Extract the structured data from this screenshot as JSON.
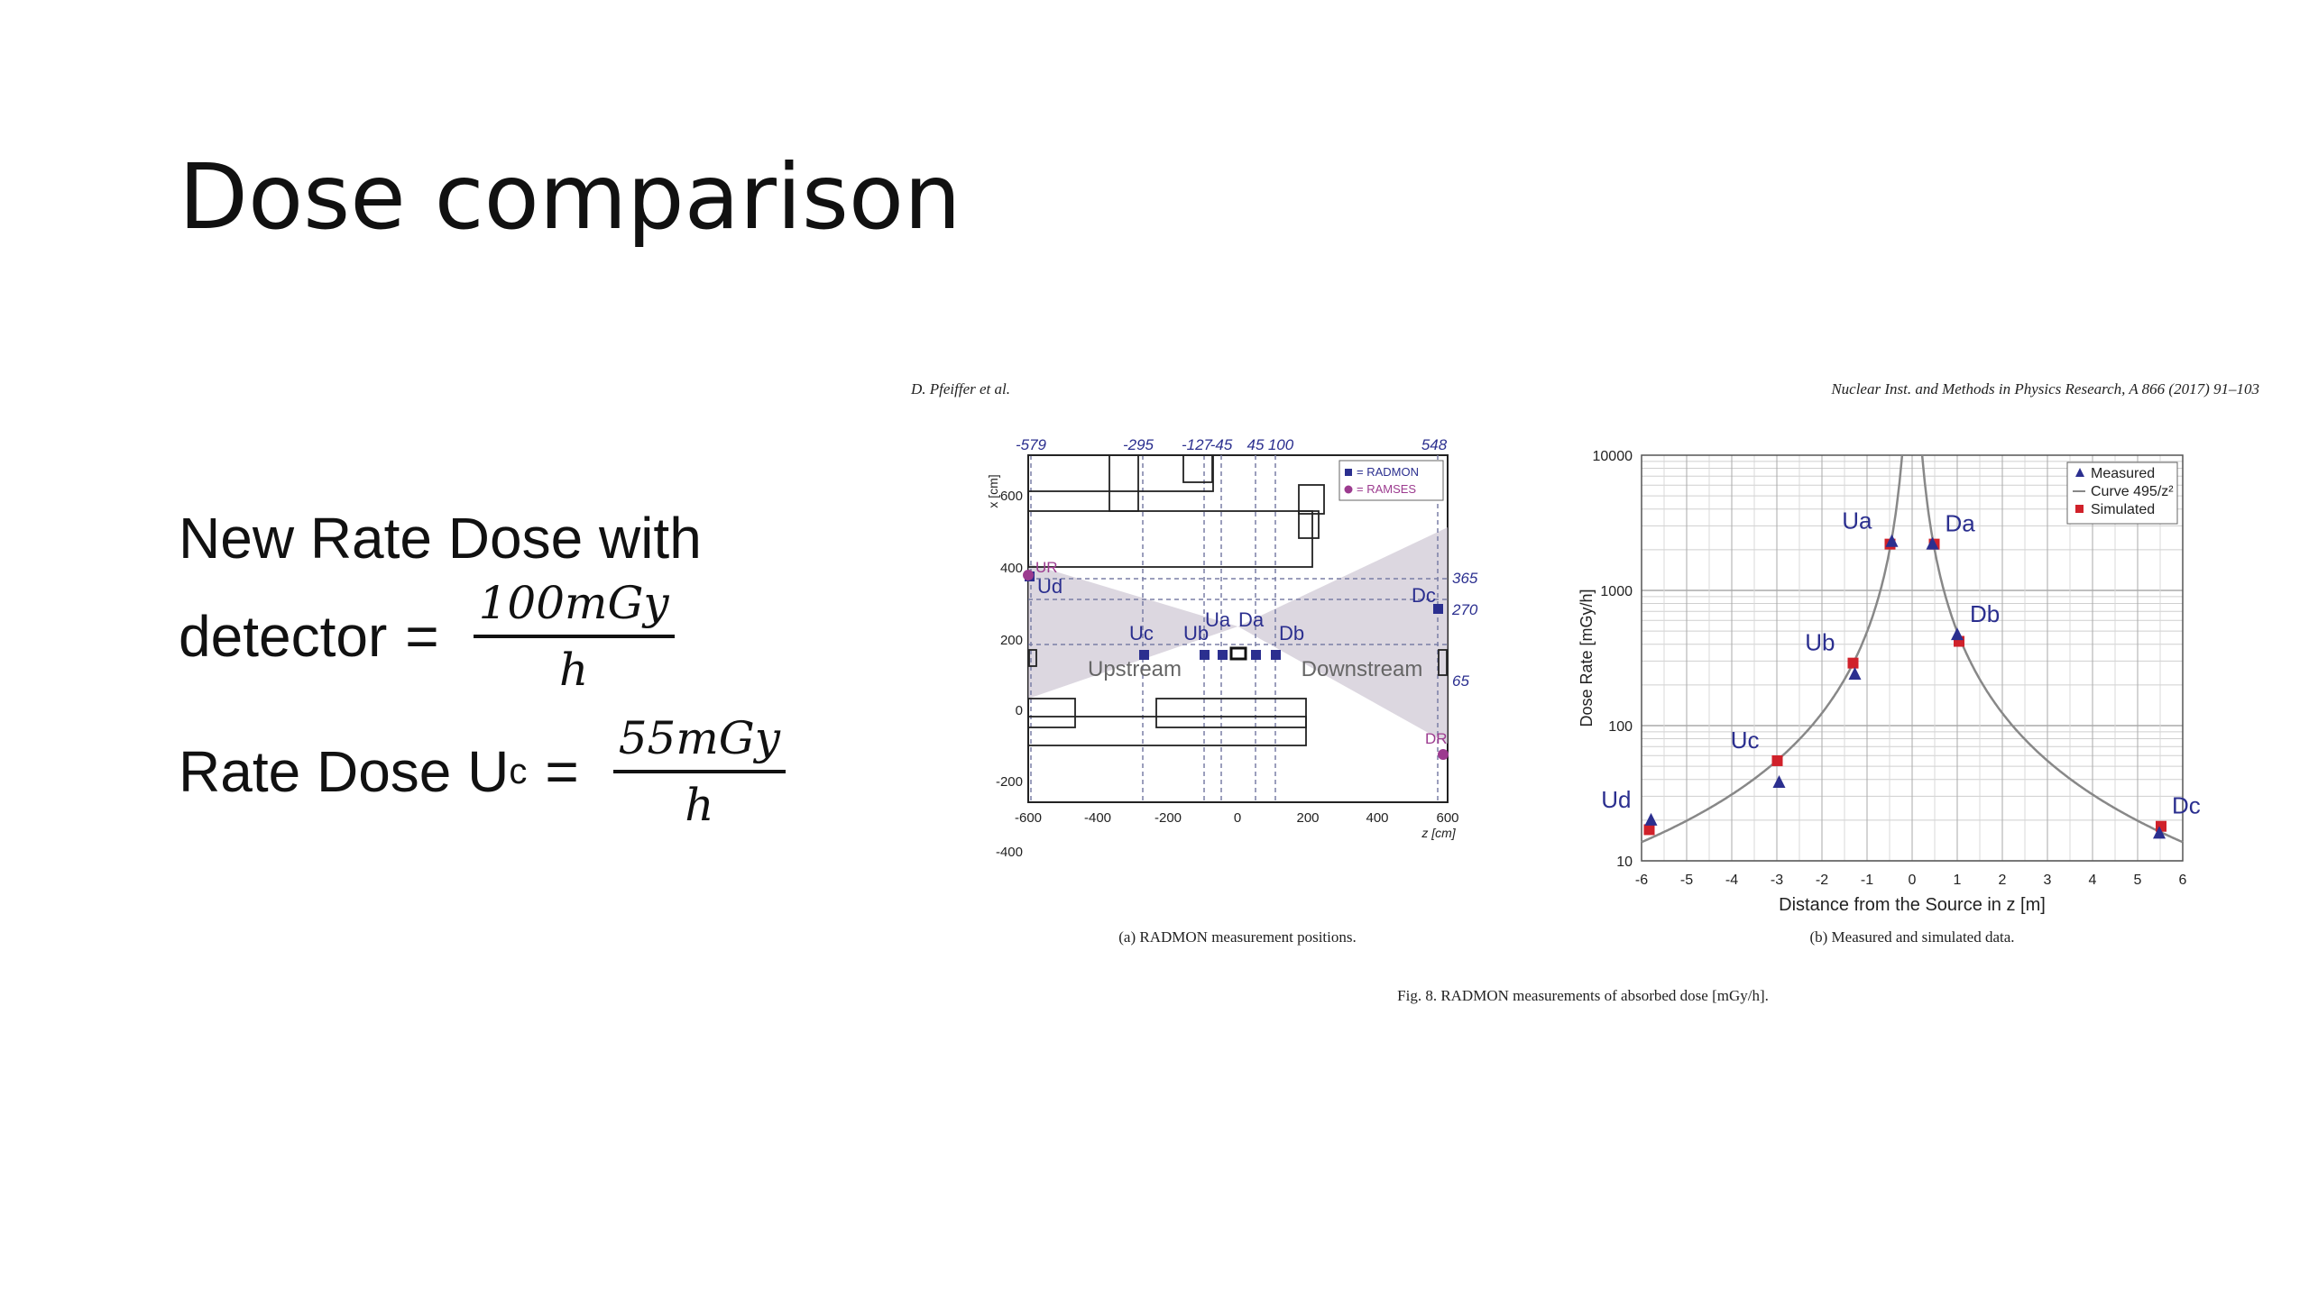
{
  "slide": {
    "title": "Dose comparison",
    "eq1": {
      "line1": "New Rate Dose with",
      "line2": "detector",
      "eq_sign": "=",
      "num": "100mGy",
      "den": "h"
    },
    "eq2": {
      "label": "Rate Dose U",
      "sub": "c",
      "eq_sign": "=",
      "num": "55mGy",
      "den": "h"
    }
  },
  "figure": {
    "header_left": "D. Pfeiffer et al.",
    "header_right": "Nuclear Inst. and Methods in Physics Research, A 866 (2017) 91–103",
    "caption": "Fig. 8.  RADMON measurements of absorbed dose [mGy/h].",
    "panel_a": {
      "caption": "(a) RADMON measurement positions.",
      "top_ticks": [
        "-579",
        "-295",
        "-127",
        "-45",
        "45",
        "100",
        "548"
      ],
      "right_ticks": [
        "365",
        "270",
        "65"
      ],
      "y_label": "x [cm]",
      "y_ticks": [
        "600",
        "400",
        "200",
        "0",
        "-200",
        "-400"
      ],
      "x_ticks": [
        "-600",
        "-400",
        "-200",
        "0",
        "200",
        "400",
        "600"
      ],
      "x_unit": "z [cm]",
      "legend": [
        "= RADMON",
        "= RAMSES"
      ],
      "upstream_label": "Upstream",
      "downstream_label": "Downstream",
      "points": [
        "UR",
        "Ud",
        "Uc",
        "Ub",
        "Ua",
        "Da",
        "Db",
        "Dc",
        "DR"
      ]
    },
    "panel_b": {
      "caption": "(b) Measured and simulated data.",
      "colors": {
        "measured": "#2b2f8f",
        "simulated": "#d0212a",
        "curve": "#888888"
      }
    }
  },
  "chart_data": {
    "type": "scatter",
    "title": "",
    "xlabel": "Distance from the Source in z [m]",
    "ylabel": "Dose Rate [mGy/h]",
    "xlim": [
      -6,
      6
    ],
    "ylim": [
      10,
      10000
    ],
    "yscale": "log",
    "grid": true,
    "legend_position": "top-right",
    "x_ticks": [
      "-6",
      "-5",
      "-4",
      "-3",
      "-2",
      "-1",
      "0",
      "1",
      "2",
      "3",
      "4",
      "5",
      "6"
    ],
    "y_ticks": [
      "10",
      "100",
      "1000",
      "10000"
    ],
    "point_labels": [
      "Ud",
      "Uc",
      "Ub",
      "Ua",
      "Da",
      "Db",
      "Dc"
    ],
    "series": [
      {
        "name": "Measured",
        "x": [
          -5.79,
          -2.95,
          -1.27,
          -0.45,
          0.45,
          1.0,
          5.48
        ],
        "y": [
          20,
          38,
          240,
          2300,
          2200,
          470,
          16
        ]
      },
      {
        "name": "Curve 495/z²",
        "formula": "495/z^2"
      },
      {
        "name": "Simulated",
        "x": [
          -5.79,
          -2.95,
          -1.27,
          -0.45,
          0.45,
          1.0,
          5.48
        ],
        "y": [
          17,
          55,
          290,
          2200,
          2200,
          420,
          18
        ]
      }
    ]
  }
}
